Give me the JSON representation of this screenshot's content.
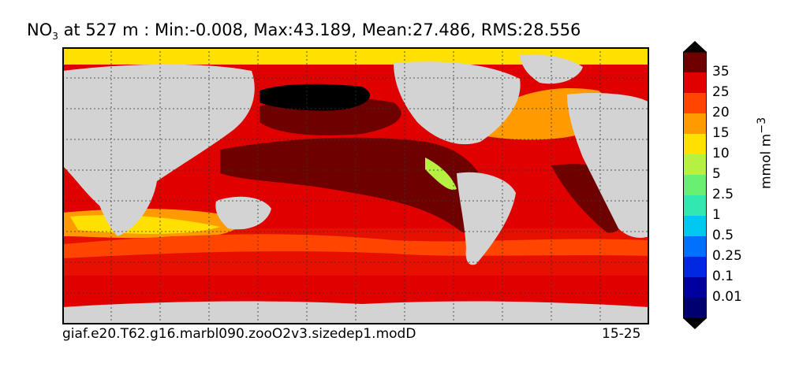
{
  "title": {
    "prefix": "NO",
    "subscript": "3",
    "rest": " at 527 m : Min:-0.008, Max:43.189, Mean:27.486, RMS:28.556"
  },
  "footer": {
    "case_name": "giaf.e20.T62.g16.marbl090.zooO2v3.sizedep1.modD",
    "years": "15-25"
  },
  "colorbar": {
    "unit_label": "mmol m",
    "unit_superscript": "−3",
    "levels": [
      "35",
      "25",
      "20",
      "15",
      "10",
      "5",
      "2.5",
      "1",
      "0.5",
      "0.25",
      "0.1",
      "0.01"
    ],
    "colors": [
      "#6e0000",
      "#e00000",
      "#ff4500",
      "#ff9a00",
      "#ffe000",
      "#b6f040",
      "#6af070",
      "#30e8b0",
      "#00c8f0",
      "#0070ff",
      "#0028e0",
      "#0000a0",
      "#000070"
    ]
  },
  "colors": {
    "land": "#d3d3d3",
    "ice": "#ffe000",
    "high": "#6e0000",
    "very_high": "#000000"
  }
}
